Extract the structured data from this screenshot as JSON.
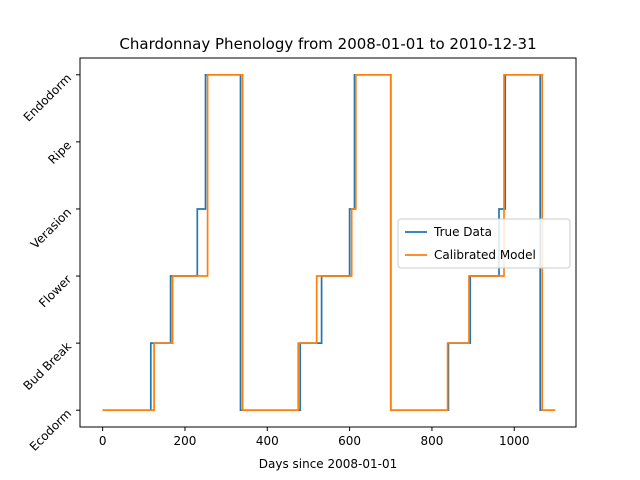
{
  "chart_data": {
    "type": "line",
    "title": "Chardonnay Phenology from 2008-01-01 to 2010-12-31",
    "xlabel": "Days since 2008-01-01",
    "ylabel": "",
    "xlim": [
      -55,
      1150
    ],
    "ylim": [
      -0.25,
      5.25
    ],
    "x_ticks": [
      0,
      200,
      400,
      600,
      800,
      1000
    ],
    "y_tick_labels": [
      "Ecodorm",
      "Bud Break",
      "Flower",
      "Verasion",
      "Ripe",
      "Endodorm"
    ],
    "grid": false,
    "legend_position": "center-right",
    "series": [
      {
        "name": "True Data",
        "color": "#1f77b4",
        "points": [
          [
            0,
            0
          ],
          [
            117,
            0
          ],
          [
            117,
            1
          ],
          [
            165,
            1
          ],
          [
            165,
            2
          ],
          [
            230,
            2
          ],
          [
            230,
            3
          ],
          [
            250,
            3
          ],
          [
            250,
            5
          ],
          [
            335,
            5
          ],
          [
            335,
            0
          ],
          [
            480,
            0
          ],
          [
            480,
            1
          ],
          [
            532,
            1
          ],
          [
            532,
            2
          ],
          [
            600,
            2
          ],
          [
            600,
            3
          ],
          [
            612,
            3
          ],
          [
            612,
            5
          ],
          [
            700,
            5
          ],
          [
            700,
            0
          ],
          [
            840,
            0
          ],
          [
            840,
            1
          ],
          [
            893,
            1
          ],
          [
            893,
            2
          ],
          [
            963,
            2
          ],
          [
            963,
            3
          ],
          [
            978,
            3
          ],
          [
            978,
            5
          ],
          [
            1063,
            5
          ],
          [
            1063,
            0
          ],
          [
            1096,
            0
          ]
        ]
      },
      {
        "name": "Calibrated Model",
        "color": "#ff7f0e",
        "points": [
          [
            0,
            0
          ],
          [
            125,
            0
          ],
          [
            125,
            1
          ],
          [
            170,
            1
          ],
          [
            170,
            2
          ],
          [
            255,
            2
          ],
          [
            255,
            5
          ],
          [
            340,
            5
          ],
          [
            340,
            0
          ],
          [
            475,
            0
          ],
          [
            475,
            1
          ],
          [
            520,
            1
          ],
          [
            520,
            2
          ],
          [
            605,
            2
          ],
          [
            605,
            3
          ],
          [
            615,
            3
          ],
          [
            615,
            5
          ],
          [
            700,
            5
          ],
          [
            700,
            0
          ],
          [
            838,
            0
          ],
          [
            838,
            1
          ],
          [
            890,
            1
          ],
          [
            890,
            2
          ],
          [
            975,
            2
          ],
          [
            975,
            5
          ],
          [
            1068,
            5
          ],
          [
            1068,
            0
          ],
          [
            1100,
            0
          ]
        ]
      }
    ]
  }
}
